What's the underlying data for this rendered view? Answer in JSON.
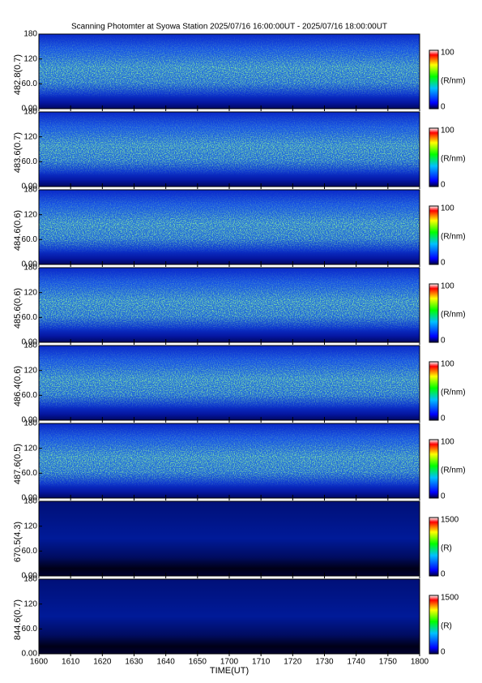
{
  "chart_data": [
    {
      "type": "heatmap",
      "title": "Scanning Photomter at Syowa Station 2025/07/16 16:00:00UT - 2025/07/16 18:00:00UT",
      "ylabel": "482.8(0.7)",
      "xlim": [
        960,
        1080
      ],
      "ylim": [
        0,
        180
      ],
      "yticks": [
        {
          "value": 0,
          "label": "0.00"
        },
        {
          "value": 60,
          "label": "60.0"
        },
        120,
        180
      ],
      "colorbar": {
        "label": "(R/nm)",
        "lim": [
          0,
          100
        ],
        "ticks": [
          0,
          100
        ]
      }
    },
    {
      "type": "heatmap",
      "ylabel": "483.6(0.7)",
      "xlim": [
        960,
        1080
      ],
      "ylim": [
        0,
        180
      ],
      "yticks": [
        {
          "value": 0,
          "label": "0.00"
        },
        {
          "value": 60,
          "label": "60.0"
        },
        120,
        180
      ],
      "colorbar": {
        "label": "(R/nm)",
        "lim": [
          0,
          100
        ],
        "ticks": [
          0,
          100
        ]
      }
    },
    {
      "type": "heatmap",
      "ylabel": "484.6(0.6)",
      "xlim": [
        960,
        1080
      ],
      "ylim": [
        0,
        180
      ],
      "yticks": [
        {
          "value": 0,
          "label": "0.00"
        },
        {
          "value": 60,
          "label": "60.0"
        },
        120,
        180
      ],
      "colorbar": {
        "label": "(R/nm)",
        "lim": [
          0,
          100
        ],
        "ticks": [
          0,
          100
        ]
      }
    },
    {
      "type": "heatmap",
      "ylabel": "485.6(0.6)",
      "xlim": [
        960,
        1080
      ],
      "ylim": [
        0,
        180
      ],
      "yticks": [
        {
          "value": 0,
          "label": "0.00"
        },
        {
          "value": 60,
          "label": "60.0"
        },
        120,
        180
      ],
      "colorbar": {
        "label": "(R/nm)",
        "lim": [
          0,
          100
        ],
        "ticks": [
          0,
          100
        ]
      }
    },
    {
      "type": "heatmap",
      "ylabel": "486.4(0.6)",
      "xlim": [
        960,
        1080
      ],
      "ylim": [
        0,
        180
      ],
      "yticks": [
        {
          "value": 0,
          "label": "0.00"
        },
        {
          "value": 60,
          "label": "60.0"
        },
        120,
        180
      ],
      "colorbar": {
        "label": "(R/nm)",
        "lim": [
          0,
          100
        ],
        "ticks": [
          0,
          100
        ]
      }
    },
    {
      "type": "heatmap",
      "ylabel": "487.6(0.5)",
      "xlim": [
        960,
        1080
      ],
      "ylim": [
        0,
        180
      ],
      "yticks": [
        {
          "value": 0,
          "label": "0.00"
        },
        {
          "value": 60,
          "label": "60.0"
        },
        120,
        180
      ],
      "colorbar": {
        "label": "(R/nm)",
        "lim": [
          0,
          100
        ],
        "ticks": [
          0,
          100
        ]
      }
    },
    {
      "type": "heatmap",
      "ylabel": "670.5(4.3)",
      "xlim": [
        960,
        1080
      ],
      "ylim": [
        0,
        180
      ],
      "yticks": [
        {
          "value": 0,
          "label": "0.00"
        },
        {
          "value": 60,
          "label": "60.0"
        },
        120,
        180
      ],
      "colorbar": {
        "label": "(R)",
        "lim": [
          0,
          1500
        ],
        "ticks": [
          0,
          1500
        ]
      }
    },
    {
      "type": "heatmap",
      "ylabel": "844.6(0.7)",
      "xlim": [
        960,
        1080
      ],
      "ylim": [
        0,
        180
      ],
      "yticks": [
        {
          "value": 0,
          "label": "0.00"
        },
        {
          "value": 60,
          "label": "60.0"
        },
        120,
        180
      ],
      "colorbar": {
        "label": "(R)",
        "lim": [
          0,
          1500
        ],
        "ticks": [
          0,
          1500
        ]
      },
      "xlabel": "TIME(UT)",
      "xticks": [
        {
          "value": 960,
          "label": "1600"
        },
        {
          "value": 970,
          "label": "1610"
        },
        {
          "value": 980,
          "label": "1620"
        },
        {
          "value": 990,
          "label": "1630"
        },
        {
          "value": 1000,
          "label": "1640"
        },
        {
          "value": 1010,
          "label": "1650"
        },
        {
          "value": 1020,
          "label": "1700"
        },
        {
          "value": 1030,
          "label": "1710"
        },
        {
          "value": 1040,
          "label": "1720"
        },
        {
          "value": 1050,
          "label": "1730"
        },
        {
          "value": 1060,
          "label": "1740"
        },
        {
          "value": 1070,
          "label": "1750"
        },
        {
          "value": 1080,
          "label": "1800"
        }
      ]
    }
  ]
}
